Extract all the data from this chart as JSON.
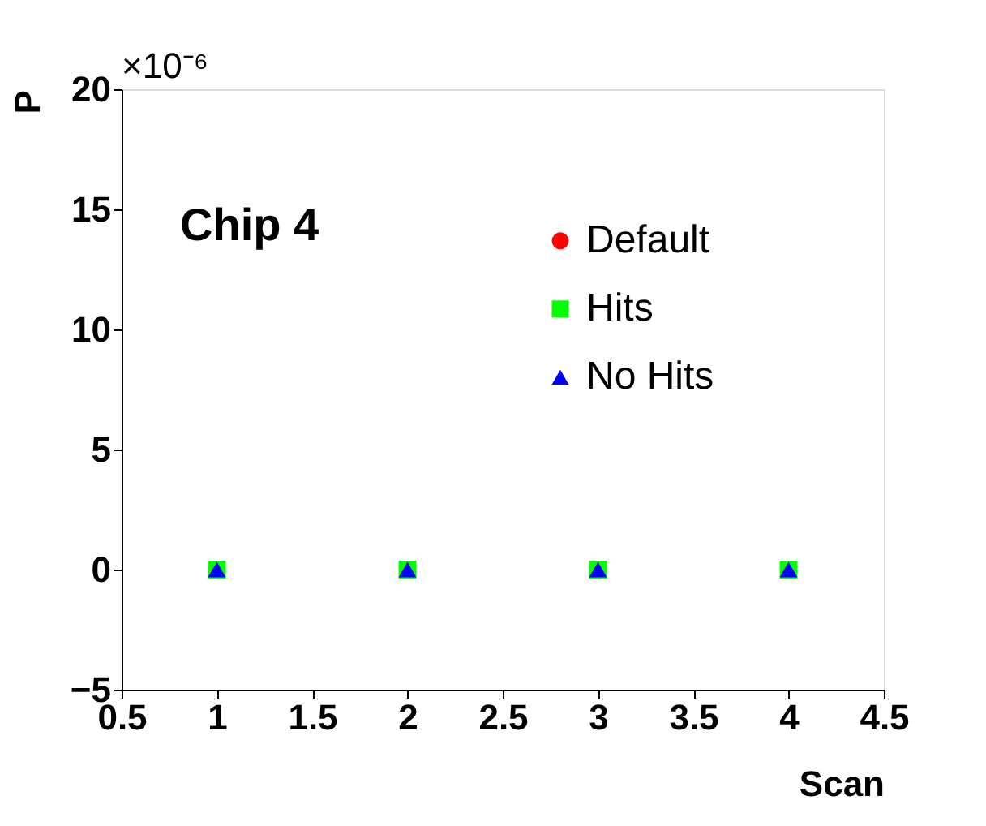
{
  "chart_data": {
    "type": "scatter",
    "xlabel": "Scan",
    "ylabel": "P",
    "annotations": [
      "×10⁻⁶",
      "Chip 4"
    ],
    "x": [
      1,
      2,
      3,
      4
    ],
    "series": [
      {
        "name": "Default",
        "color": "#ff0000",
        "marker": "circle",
        "values": [
          null,
          null,
          null,
          null
        ]
      },
      {
        "name": "Hits",
        "color": "#00ff00",
        "marker": "square",
        "values": [
          0,
          0,
          0,
          0
        ]
      },
      {
        "name": "No Hits",
        "color": "#0000ff",
        "marker": "triangle",
        "values": [
          0,
          0,
          0,
          0
        ]
      }
    ],
    "xlim": [
      0.5,
      4.5
    ],
    "xticks": [
      0.5,
      1,
      1.5,
      2,
      2.5,
      3,
      3.5,
      4,
      4.5
    ],
    "ylim": [
      -5,
      20
    ],
    "yticks": [
      -5,
      0,
      5,
      10,
      15,
      20
    ],
    "grid": false,
    "legend": "top right"
  }
}
